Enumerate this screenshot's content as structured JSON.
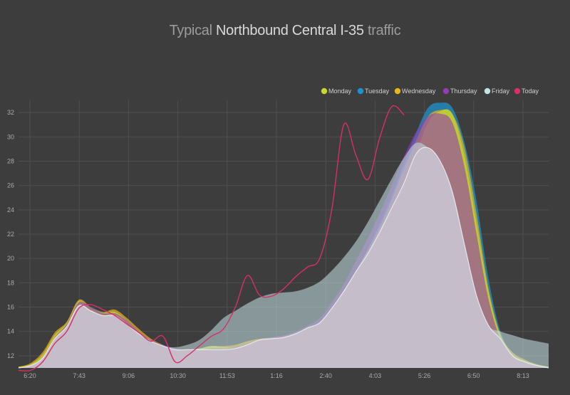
{
  "title": {
    "part1": "Typical",
    "part2": "Northbound Central I-35",
    "part3": "traffic"
  },
  "chart_data": {
    "type": "area",
    "xlabel": "",
    "ylabel": "",
    "x_ticks": [
      "6:20",
      "7:43",
      "9:06",
      "10:30",
      "11:53",
      "1:16",
      "2:40",
      "4:03",
      "5:26",
      "6:50",
      "8:13"
    ],
    "y_ticks": [
      12,
      14,
      16,
      18,
      20,
      22,
      24,
      26,
      28,
      30,
      32
    ],
    "ylim": [
      11,
      33
    ],
    "grid": true,
    "legend": "top-right",
    "x": [
      "6:00",
      "6:20",
      "6:40",
      "7:00",
      "7:20",
      "7:40",
      "8:00",
      "8:20",
      "8:40",
      "9:00",
      "9:20",
      "9:40",
      "10:00",
      "10:20",
      "10:40",
      "11:00",
      "11:20",
      "11:40",
      "12:00",
      "12:20",
      "12:40",
      "1:00",
      "1:20",
      "1:40",
      "2:00",
      "2:20",
      "2:40",
      "3:00",
      "3:20",
      "3:40",
      "4:00",
      "4:20",
      "4:40",
      "5:00",
      "5:20",
      "5:40",
      "6:00",
      "6:20",
      "6:40",
      "7:00",
      "7:20",
      "7:40",
      "8:00",
      "8:20",
      "8:40"
    ],
    "series": [
      {
        "name": "Monday",
        "color": "#c5d92b",
        "values": [
          11.1,
          11.3,
          12.1,
          13.7,
          14.7,
          16.5,
          15.9,
          15.5,
          15.6,
          14.9,
          14.0,
          13.3,
          12.8,
          12.5,
          12.5,
          12.6,
          12.8,
          12.7,
          12.7,
          13.0,
          13.3,
          13.4,
          13.5,
          13.8,
          14.3,
          14.7,
          15.9,
          17.4,
          18.9,
          20.4,
          22.2,
          24.2,
          26.2,
          28.6,
          31.2,
          32.1,
          31.9,
          28.5,
          23.0,
          17.3,
          13.6,
          12.1,
          11.6,
          11.3,
          11.1
        ]
      },
      {
        "name": "Tuesday",
        "color": "#1d93cc",
        "values": [
          11.0,
          11.2,
          11.8,
          13.4,
          14.5,
          16.4,
          16.0,
          15.6,
          15.6,
          14.9,
          14.0,
          13.3,
          12.9,
          12.6,
          12.5,
          12.5,
          12.5,
          12.5,
          12.6,
          12.9,
          13.3,
          13.5,
          13.6,
          13.9,
          14.3,
          14.8,
          15.9,
          17.3,
          19.0,
          20.8,
          22.9,
          25.2,
          27.8,
          30.3,
          32.4,
          32.8,
          32.4,
          29.6,
          24.8,
          18.4,
          14.0,
          12.2,
          11.6,
          11.3,
          11.1
        ]
      },
      {
        "name": "Wednesday",
        "color": "#e8b51c",
        "values": [
          11.1,
          11.4,
          12.3,
          13.9,
          14.8,
          16.6,
          16.0,
          15.6,
          15.8,
          15.1,
          14.2,
          13.4,
          12.9,
          12.5,
          12.5,
          12.6,
          12.8,
          12.8,
          12.9,
          13.2,
          13.4,
          13.5,
          13.6,
          13.9,
          14.3,
          14.8,
          15.9,
          17.3,
          19.0,
          20.7,
          22.6,
          24.9,
          27.4,
          29.7,
          31.7,
          32.2,
          31.9,
          29.2,
          23.8,
          17.6,
          13.8,
          12.3,
          11.7,
          11.3,
          11.1
        ]
      },
      {
        "name": "Thursday",
        "color": "#8f3eb5",
        "values": [
          11.0,
          11.2,
          11.9,
          13.5,
          14.6,
          16.4,
          16.0,
          15.5,
          15.5,
          14.9,
          14.0,
          13.3,
          12.9,
          12.6,
          12.5,
          12.5,
          12.6,
          12.6,
          12.7,
          13.0,
          13.3,
          13.5,
          13.7,
          14.0,
          14.5,
          15.1,
          16.4,
          17.9,
          19.8,
          21.7,
          23.8,
          26.1,
          28.4,
          30.4,
          31.7,
          31.9,
          31.2,
          27.6,
          22.1,
          16.7,
          13.4,
          12.0,
          11.5,
          11.2,
          11.0
        ]
      },
      {
        "name": "Friday",
        "color": "#c7e2e6",
        "values": [
          11.0,
          11.2,
          11.9,
          13.4,
          14.4,
          16.1,
          15.7,
          15.3,
          15.3,
          14.6,
          13.8,
          13.2,
          12.8,
          12.7,
          12.9,
          13.3,
          14.1,
          15.1,
          15.7,
          16.3,
          16.8,
          17.1,
          17.2,
          17.3,
          17.6,
          18.1,
          19.0,
          20.1,
          21.4,
          23.0,
          24.8,
          26.6,
          28.3,
          29.5,
          29.1,
          28.0,
          25.5,
          21.2,
          17.0,
          14.5,
          14.0,
          13.7,
          13.4,
          13.2,
          13.0
        ]
      },
      {
        "name": "Today",
        "color": "#d72f67",
        "values": [
          10.8,
          10.8,
          11.5,
          13.0,
          14.0,
          15.9,
          16.2,
          15.8,
          15.3,
          14.6,
          13.9,
          13.2,
          13.6,
          11.5,
          12.0,
          12.8,
          13.6,
          14.2,
          16.0,
          18.6,
          17.0,
          16.9,
          17.5,
          18.5,
          19.3,
          20.0,
          24.0,
          31.0,
          28.5,
          26.5,
          30.0,
          32.5,
          31.8,
          null,
          null,
          null,
          null,
          null,
          null,
          null,
          null,
          null,
          null,
          null,
          null
        ]
      }
    ]
  }
}
